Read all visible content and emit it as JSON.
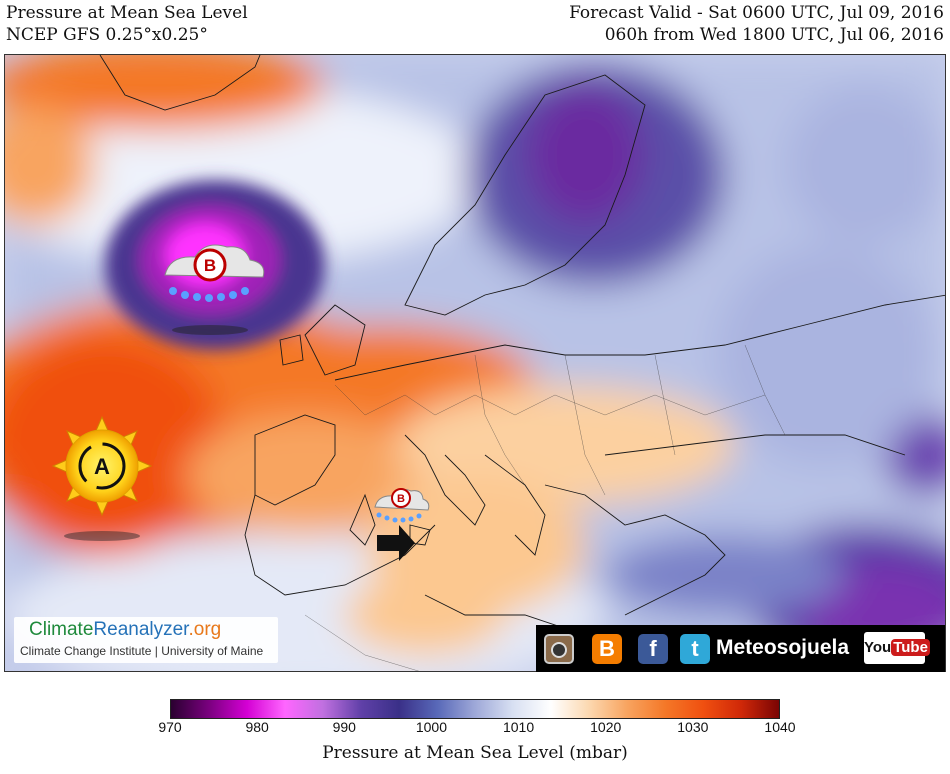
{
  "header": {
    "title": "Pressure at Mean Sea Level",
    "model": "NCEP GFS 0.25°x0.25°",
    "valid": "Forecast Valid - Sat 0600 UTC, Jul 09, 2016",
    "run": "060h from Wed 1800 UTC, Jul 06, 2016"
  },
  "map": {
    "high_letter": "A",
    "low_letter": "B"
  },
  "credit": {
    "brand_a": "Climate",
    "brand_b": "Reanalyzer",
    "brand_c": ".org",
    "subtitle": "Climate Change Institute | University of Maine"
  },
  "social": {
    "icons": [
      "instagram-icon",
      "blogger-icon",
      "facebook-icon",
      "twitter-icon"
    ],
    "blogger_glyph": "B",
    "facebook_glyph": "f",
    "twitter_glyph": "t",
    "name": "Meteosojuela",
    "youtube_a": "You",
    "youtube_b": "Tube"
  },
  "colorbar": {
    "min": 970,
    "max": 1040,
    "ticks": [
      "970",
      "980",
      "990",
      "1000",
      "1010",
      "1020",
      "1030",
      "1040"
    ],
    "label": "Pressure at Mean Sea Level (mbar)",
    "stops": [
      "#2a0030",
      "#7a007f",
      "#d400d4",
      "#ff66ff",
      "#c070e0",
      "#6040a8",
      "#3a3088",
      "#5868b8",
      "#9ea8d8",
      "#d8e0f2",
      "#ffffff",
      "#fcd8b0",
      "#f8a460",
      "#f47828",
      "#f05010",
      "#d02808",
      "#7a0404"
    ]
  }
}
